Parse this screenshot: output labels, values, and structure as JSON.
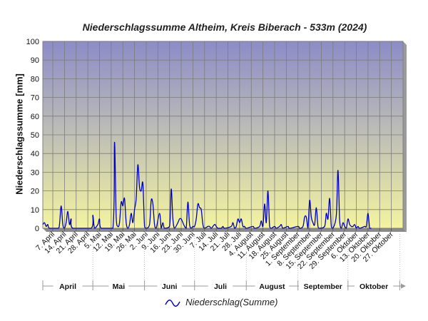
{
  "chart_data": {
    "type": "line",
    "title": "Niederschlagssumme Altheim, Kreis Biberach - 533m (2024)",
    "xlabel": "",
    "ylabel": "Niederschlagssumme [mm]",
    "ylim": [
      0,
      100
    ],
    "yticks": [
      0,
      10,
      20,
      30,
      40,
      50,
      60,
      70,
      80,
      90,
      100
    ],
    "xlim": [
      "2024-04-01",
      "2024-11-03"
    ],
    "x_tick_labels": [
      "7. April",
      "14. April",
      "21. April",
      "28. April",
      "5. Mai",
      "12. Mai",
      "19. Mai",
      "26. Mai",
      "2. Juni",
      "9. Juni",
      "16. Juni",
      "23. Juni",
      "30. Juni",
      "7. Juli",
      "14. Juli",
      "21. Juli",
      "28. Juli",
      "4. August",
      "11. August",
      "18. August",
      "25. August",
      "1. September",
      "8. September",
      "15. September",
      "22. September",
      "29. September",
      "6. Oktober",
      "13. Oktober",
      "20. Oktober",
      "27. Oktober"
    ],
    "month_labels": [
      "April",
      "Mai",
      "Juni",
      "Juli",
      "August",
      "September",
      "Oktober"
    ],
    "grid": true,
    "legend_position": "bottom-center",
    "series": [
      {
        "name": "Niederschlag(Summe)",
        "color": "#0000cc",
        "points": [
          [
            "2024-04-01",
            2
          ],
          [
            "2024-04-02",
            3
          ],
          [
            "2024-04-03",
            1
          ],
          [
            "2024-04-04",
            2
          ],
          [
            "2024-04-05",
            0
          ],
          [
            "2024-04-10",
            0
          ],
          [
            "2024-04-11",
            2
          ],
          [
            "2024-04-12",
            12
          ],
          [
            "2024-04-13",
            2
          ],
          [
            "2024-04-14",
            0
          ],
          [
            "2024-04-15",
            3
          ],
          [
            "2024-04-16",
            9
          ],
          [
            "2024-04-17",
            2
          ],
          [
            "2024-04-18",
            5
          ],
          [
            "2024-04-19",
            0
          ],
          [
            "2024-04-30",
            0
          ],
          [
            "2024-05-01",
            7
          ],
          [
            "2024-05-02",
            0
          ],
          [
            "2024-05-04",
            2
          ],
          [
            "2024-05-05",
            5
          ],
          [
            "2024-05-06",
            0
          ],
          [
            "2024-05-13",
            0
          ],
          [
            "2024-05-14",
            46
          ],
          [
            "2024-05-15",
            6
          ],
          [
            "2024-05-16",
            1
          ],
          [
            "2024-05-17",
            3
          ],
          [
            "2024-05-18",
            14
          ],
          [
            "2024-05-19",
            12
          ],
          [
            "2024-05-20",
            16
          ],
          [
            "2024-05-21",
            3
          ],
          [
            "2024-05-22",
            0
          ],
          [
            "2024-05-23",
            2
          ],
          [
            "2024-05-24",
            8
          ],
          [
            "2024-05-25",
            3
          ],
          [
            "2024-05-26",
            10
          ],
          [
            "2024-05-27",
            16
          ],
          [
            "2024-05-28",
            34
          ],
          [
            "2024-05-29",
            22
          ],
          [
            "2024-05-30",
            20
          ],
          [
            "2024-05-31",
            24
          ],
          [
            "2024-06-01",
            1
          ],
          [
            "2024-06-02",
            0
          ],
          [
            "2024-06-04",
            2
          ],
          [
            "2024-06-05",
            15
          ],
          [
            "2024-06-06",
            13
          ],
          [
            "2024-06-07",
            2
          ],
          [
            "2024-06-08",
            0
          ],
          [
            "2024-06-10",
            8
          ],
          [
            "2024-06-11",
            0
          ],
          [
            "2024-06-12",
            3
          ],
          [
            "2024-06-13",
            0
          ],
          [
            "2024-06-16",
            1
          ],
          [
            "2024-06-17",
            21
          ],
          [
            "2024-06-18",
            5
          ],
          [
            "2024-06-19",
            0
          ],
          [
            "2024-06-21",
            3
          ],
          [
            "2024-06-22",
            5
          ],
          [
            "2024-06-23",
            5
          ],
          [
            "2024-06-24",
            3
          ],
          [
            "2024-06-25",
            1
          ],
          [
            "2024-06-26",
            0
          ],
          [
            "2024-06-27",
            14
          ],
          [
            "2024-06-28",
            2
          ],
          [
            "2024-06-29",
            0
          ],
          [
            "2024-06-30",
            1
          ],
          [
            "2024-07-01",
            1
          ],
          [
            "2024-07-02",
            5
          ],
          [
            "2024-07-03",
            13
          ],
          [
            "2024-07-04",
            11
          ],
          [
            "2024-07-05",
            10
          ],
          [
            "2024-07-06",
            2
          ],
          [
            "2024-07-07",
            0
          ],
          [
            "2024-07-09",
            1
          ],
          [
            "2024-07-10",
            1
          ],
          [
            "2024-07-11",
            0
          ],
          [
            "2024-07-13",
            2
          ],
          [
            "2024-07-14",
            1
          ],
          [
            "2024-07-15",
            0
          ],
          [
            "2024-07-17",
            0
          ],
          [
            "2024-07-18",
            1
          ],
          [
            "2024-07-19",
            0
          ],
          [
            "2024-07-23",
            1
          ],
          [
            "2024-07-24",
            3
          ],
          [
            "2024-07-25",
            0
          ],
          [
            "2024-07-26",
            1
          ],
          [
            "2024-07-27",
            5
          ],
          [
            "2024-07-28",
            3
          ],
          [
            "2024-07-29",
            5
          ],
          [
            "2024-07-30",
            1
          ],
          [
            "2024-07-31",
            1
          ],
          [
            "2024-08-01",
            0
          ],
          [
            "2024-08-05",
            1
          ],
          [
            "2024-08-06",
            0
          ],
          [
            "2024-08-09",
            1
          ],
          [
            "2024-08-10",
            4
          ],
          [
            "2024-08-11",
            1
          ],
          [
            "2024-08-12",
            13
          ],
          [
            "2024-08-13",
            3
          ],
          [
            "2024-08-14",
            20
          ],
          [
            "2024-08-15",
            1
          ],
          [
            "2024-08-16",
            0
          ],
          [
            "2024-08-18",
            1
          ],
          [
            "2024-08-19",
            0
          ],
          [
            "2024-08-21",
            1
          ],
          [
            "2024-08-22",
            2
          ],
          [
            "2024-08-23",
            0
          ],
          [
            "2024-08-26",
            1
          ],
          [
            "2024-08-27",
            0
          ],
          [
            "2024-09-01",
            1
          ],
          [
            "2024-09-02",
            0
          ],
          [
            "2024-09-04",
            1
          ],
          [
            "2024-09-05",
            6
          ],
          [
            "2024-09-06",
            6
          ],
          [
            "2024-09-07",
            0
          ],
          [
            "2024-09-08",
            15
          ],
          [
            "2024-09-09",
            6
          ],
          [
            "2024-09-10",
            3
          ],
          [
            "2024-09-11",
            2
          ],
          [
            "2024-09-12",
            11
          ],
          [
            "2024-09-13",
            1
          ],
          [
            "2024-09-14",
            0
          ],
          [
            "2024-09-17",
            1
          ],
          [
            "2024-09-18",
            8
          ],
          [
            "2024-09-19",
            5
          ],
          [
            "2024-09-20",
            16
          ],
          [
            "2024-09-21",
            1
          ],
          [
            "2024-09-22",
            0
          ],
          [
            "2024-09-24",
            7
          ],
          [
            "2024-09-25",
            31
          ],
          [
            "2024-09-26",
            4
          ],
          [
            "2024-09-27",
            0
          ],
          [
            "2024-09-28",
            3
          ],
          [
            "2024-09-29",
            1
          ],
          [
            "2024-09-30",
            0
          ],
          [
            "2024-10-01",
            5
          ],
          [
            "2024-10-02",
            2
          ],
          [
            "2024-10-03",
            1
          ],
          [
            "2024-10-04",
            1
          ],
          [
            "2024-10-05",
            2
          ],
          [
            "2024-10-06",
            0
          ],
          [
            "2024-10-07",
            1
          ],
          [
            "2024-10-08",
            0
          ],
          [
            "2024-10-11",
            1
          ],
          [
            "2024-10-12",
            1
          ],
          [
            "2024-10-13",
            8
          ],
          [
            "2024-10-14",
            0
          ],
          [
            "2024-10-15",
            0
          ]
        ]
      }
    ]
  }
}
